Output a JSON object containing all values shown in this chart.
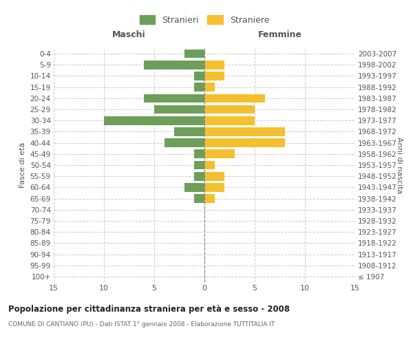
{
  "age_groups": [
    "100+",
    "95-99",
    "90-94",
    "85-89",
    "80-84",
    "75-79",
    "70-74",
    "65-69",
    "60-64",
    "55-59",
    "50-54",
    "45-49",
    "40-44",
    "35-39",
    "30-34",
    "25-29",
    "20-24",
    "15-19",
    "10-14",
    "5-9",
    "0-4"
  ],
  "birth_years": [
    "≤ 1907",
    "1908-1912",
    "1913-1917",
    "1918-1922",
    "1923-1927",
    "1928-1932",
    "1933-1937",
    "1938-1942",
    "1943-1947",
    "1948-1952",
    "1953-1957",
    "1958-1962",
    "1963-1967",
    "1968-1972",
    "1973-1977",
    "1978-1982",
    "1983-1987",
    "1988-1992",
    "1993-1997",
    "1998-2002",
    "2003-2007"
  ],
  "males": [
    0,
    0,
    0,
    0,
    0,
    0,
    0,
    1,
    2,
    1,
    1,
    1,
    4,
    3,
    10,
    5,
    6,
    1,
    1,
    6,
    2
  ],
  "females": [
    0,
    0,
    0,
    0,
    0,
    0,
    0,
    1,
    2,
    2,
    1,
    3,
    8,
    8,
    5,
    5,
    6,
    1,
    2,
    2,
    0
  ],
  "male_color": "#6d9e5a",
  "female_color": "#f5c030",
  "title": "Popolazione per cittadinanza straniera per età e sesso - 2008",
  "subtitle": "COMUNE DI CANTIANO (PU) - Dati ISTAT 1° gennaio 2008 - Elaborazione TUTTITALIA.IT",
  "legend_male": "Stranieri",
  "legend_female": "Straniere",
  "xlabel_left": "Maschi",
  "xlabel_right": "Femmine",
  "ylabel_left": "Fasce di età",
  "ylabel_right": "Anni di nascita",
  "xlim": 15,
  "bg_color": "#ffffff",
  "grid_color": "#cccccc"
}
